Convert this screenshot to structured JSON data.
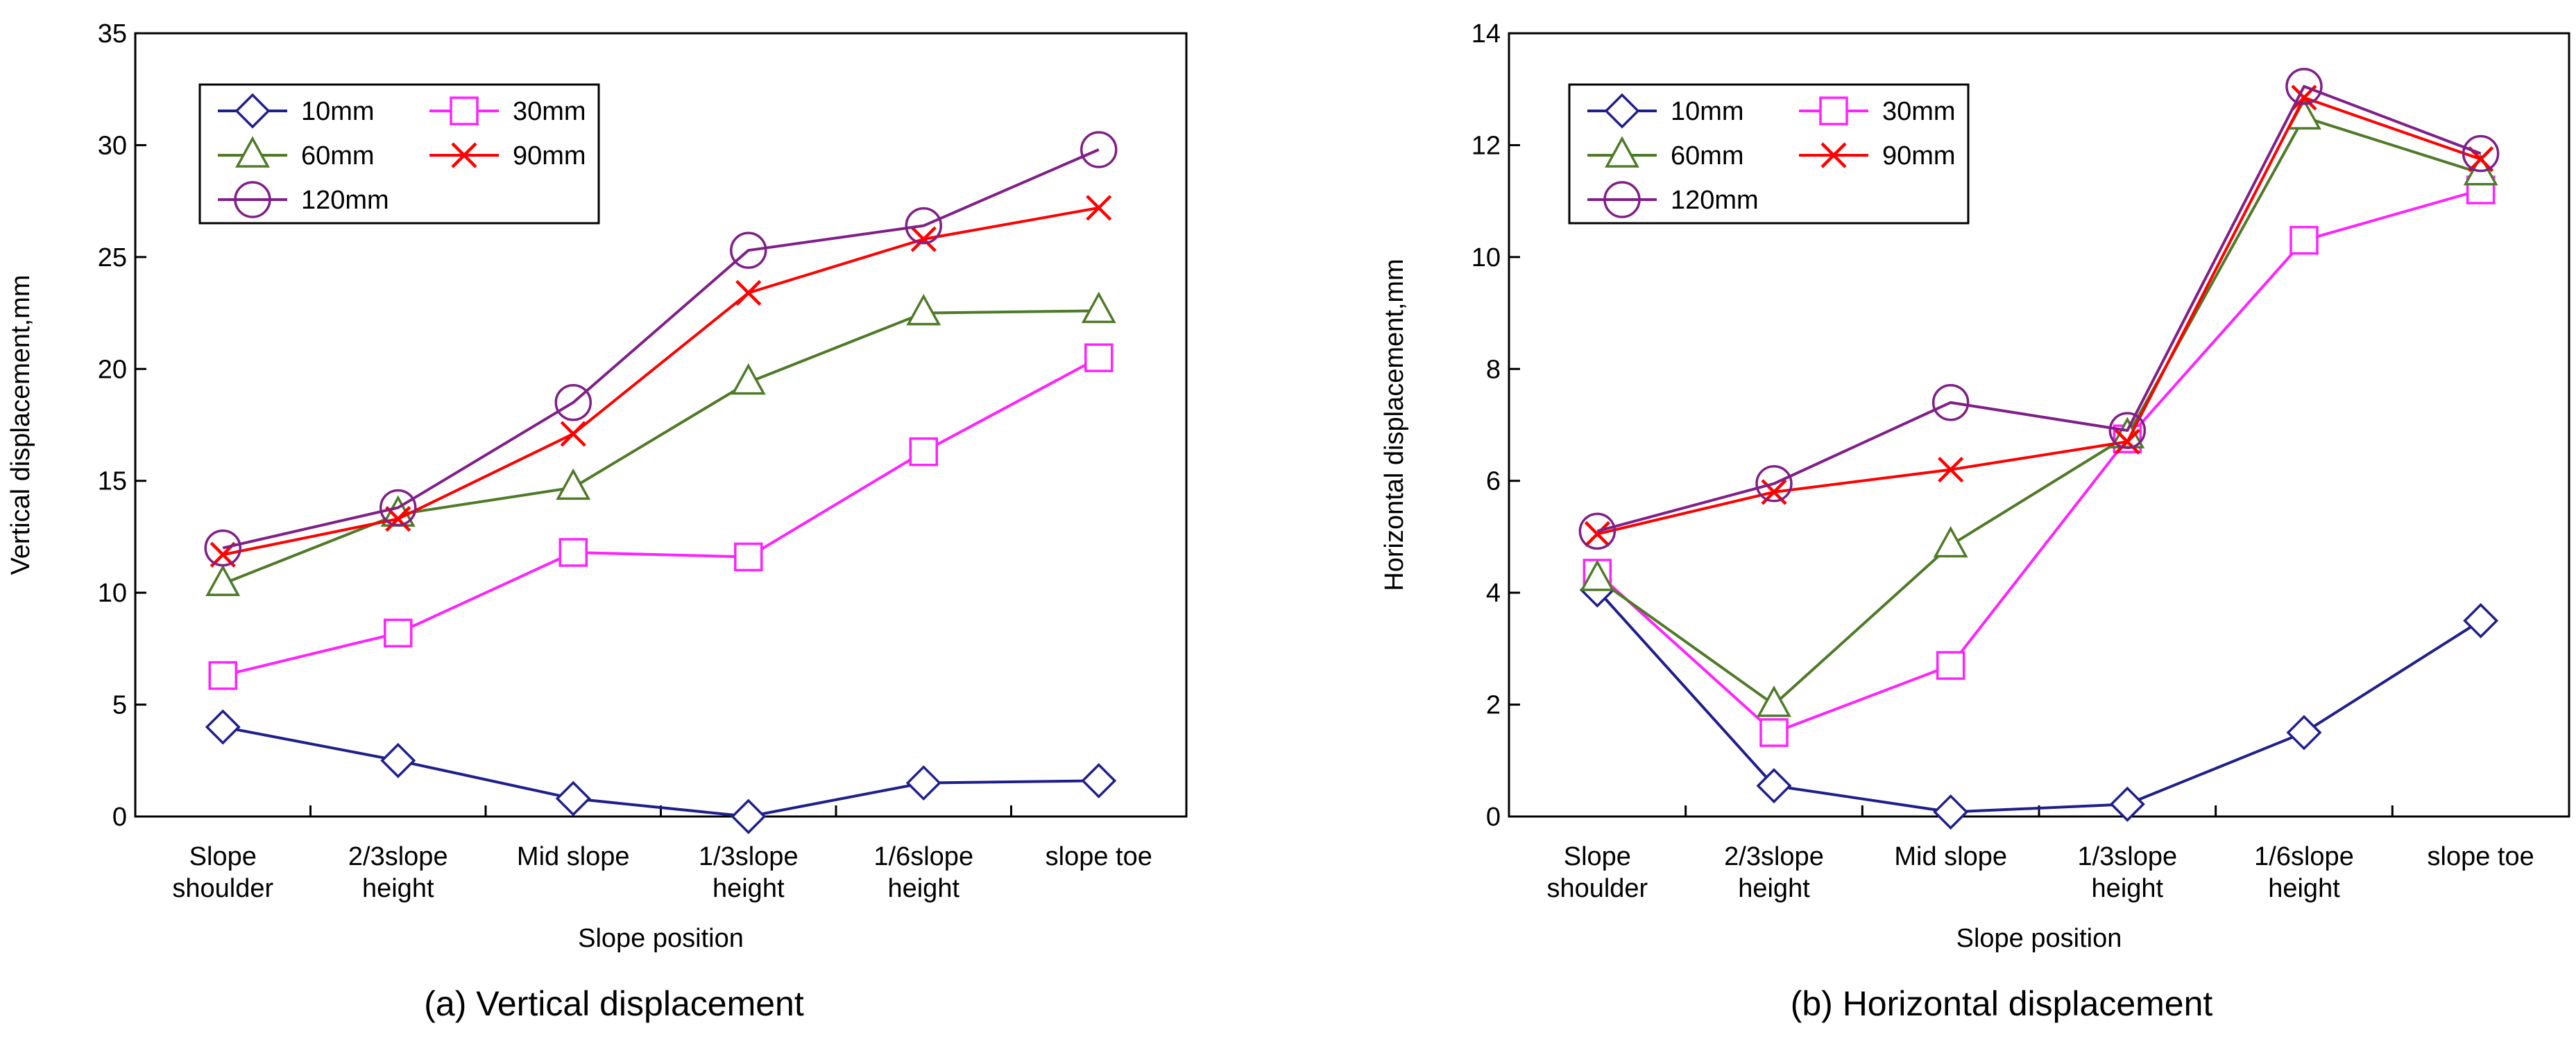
{
  "chart_data": [
    {
      "type": "line",
      "caption": "(a) Vertical displacement",
      "xlabel": "Slope position",
      "ylabel": "Vertical displacement,mm",
      "categories": [
        [
          "Slope",
          "shoulder"
        ],
        [
          "2/3slope",
          "height"
        ],
        [
          "Mid slope"
        ],
        [
          "1/3slope",
          "height"
        ],
        [
          "1/6slope",
          "height"
        ],
        [
          "slope toe"
        ]
      ],
      "ylim": [
        0,
        35
      ],
      "yticks": [
        0,
        5,
        10,
        15,
        20,
        25,
        30,
        35
      ],
      "legend_position": "top-left",
      "series": [
        {
          "name": "10mm",
          "color": "#1F1F8C",
          "marker": "diamond",
          "values": [
            4.0,
            2.5,
            0.8,
            0.0,
            1.5,
            1.6
          ]
        },
        {
          "name": "30mm",
          "color": "#FF22FF",
          "marker": "square",
          "values": [
            6.3,
            8.2,
            11.8,
            11.6,
            16.3,
            20.5
          ]
        },
        {
          "name": "60mm",
          "color": "#4F7A28",
          "marker": "triangle",
          "values": [
            10.4,
            13.5,
            14.7,
            19.4,
            22.5,
            22.6
          ]
        },
        {
          "name": "90mm",
          "color": "#FF0000",
          "marker": "x",
          "values": [
            11.7,
            13.3,
            17.1,
            23.4,
            25.8,
            27.2
          ]
        },
        {
          "name": "120mm",
          "color": "#7F1F87",
          "marker": "circle",
          "values": [
            12.0,
            13.8,
            18.5,
            25.3,
            26.4,
            29.8
          ]
        }
      ]
    },
    {
      "type": "line",
      "caption": "(b) Horizontal displacement",
      "xlabel": "Slope position",
      "ylabel": "Horizontal displacement,mm",
      "categories": [
        [
          "Slope",
          "shoulder"
        ],
        [
          "2/3slope",
          "height"
        ],
        [
          "Mid slope"
        ],
        [
          "1/3slope",
          "height"
        ],
        [
          "1/6slope",
          "height"
        ],
        [
          "slope toe"
        ]
      ],
      "ylim": [
        0,
        14
      ],
      "yticks": [
        0,
        2,
        4,
        6,
        8,
        10,
        12,
        14
      ],
      "legend_position": "top-left",
      "series": [
        {
          "name": "10mm",
          "color": "#1F1F8C",
          "marker": "diamond",
          "values": [
            4.05,
            0.55,
            0.08,
            0.22,
            1.5,
            3.5
          ]
        },
        {
          "name": "30mm",
          "color": "#FF22FF",
          "marker": "square",
          "values": [
            4.35,
            1.5,
            2.7,
            6.75,
            10.3,
            11.2
          ]
        },
        {
          "name": "60mm",
          "color": "#4F7A28",
          "marker": "triangle",
          "values": [
            4.25,
            2.0,
            4.85,
            6.8,
            12.5,
            11.5
          ]
        },
        {
          "name": "90mm",
          "color": "#FF0000",
          "marker": "x",
          "values": [
            5.05,
            5.8,
            6.2,
            6.7,
            12.85,
            11.75
          ]
        },
        {
          "name": "120mm",
          "color": "#7F1F87",
          "marker": "circle",
          "values": [
            5.1,
            5.95,
            7.4,
            6.9,
            13.05,
            11.85
          ]
        }
      ]
    }
  ]
}
